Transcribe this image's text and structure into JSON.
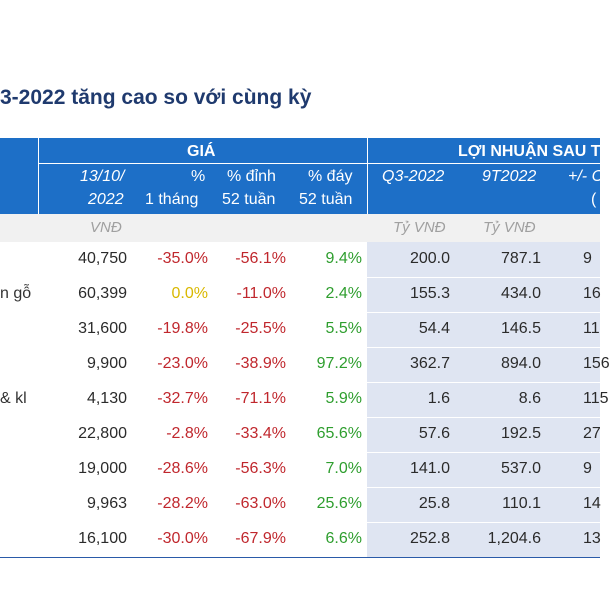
{
  "title": "3-2022 tăng cao so với cùng kỳ",
  "header": {
    "gia": "GIÁ",
    "loi_nhuan": "LỢI NHUẬN SAU T",
    "date_line1": "13/10/",
    "date_line2": "2022",
    "pct_month_1": "%",
    "pct_month_2": "1 tháng",
    "pct_peak_1": "% đỉnh",
    "pct_peak_2": "52 tuần",
    "pct_bottom_1": "% đáy",
    "pct_bottom_2": "52 tuần",
    "q3": "Q3-2022",
    "nine_m": "9T2022",
    "yoy": "+/- C",
    "partial": "("
  },
  "units": {
    "vnd": "VNĐ",
    "ty_q3": "Tỷ VNĐ",
    "ty_9m": "Tỷ VNĐ"
  },
  "rows": [
    {
      "name": "",
      "price": "40,750",
      "m1": "-35.0%",
      "peak": "-56.1%",
      "bottom": "9.4%",
      "q3": "200.0",
      "ytd": "787.1",
      "yoy": "9"
    },
    {
      "name": "n gỗ",
      "price": "60,399",
      "m1": "0.0%",
      "peak": "-11.0%",
      "bottom": "2.4%",
      "q3": "155.3",
      "ytd": "434.0",
      "yoy": "16"
    },
    {
      "name": "",
      "price": "31,600",
      "m1": "-19.8%",
      "peak": "-25.5%",
      "bottom": "5.5%",
      "q3": "54.4",
      "ytd": "146.5",
      "yoy": "11"
    },
    {
      "name": "",
      "price": "9,900",
      "m1": "-23.0%",
      "peak": "-38.9%",
      "bottom": "97.2%",
      "q3": "362.7",
      "ytd": "894.0",
      "yoy": "156"
    },
    {
      "name": "& kl",
      "price": "4,130",
      "m1": "-32.7%",
      "peak": "-71.1%",
      "bottom": "5.9%",
      "q3": "1.6",
      "ytd": "8.6",
      "yoy": "115"
    },
    {
      "name": "",
      "price": "22,800",
      "m1": "-2.8%",
      "peak": "-33.4%",
      "bottom": "65.6%",
      "q3": "57.6",
      "ytd": "192.5",
      "yoy": "27"
    },
    {
      "name": "",
      "price": "19,000",
      "m1": "-28.6%",
      "peak": "-56.3%",
      "bottom": "7.0%",
      "q3": "141.0",
      "ytd": "537.0",
      "yoy": "9"
    },
    {
      "name": "",
      "price": "9,963",
      "m1": "-28.2%",
      "peak": "-63.0%",
      "bottom": "25.6%",
      "q3": "25.8",
      "ytd": "110.1",
      "yoy": "14"
    },
    {
      "name": "",
      "price": "16,100",
      "m1": "-30.0%",
      "peak": "-67.9%",
      "bottom": "6.6%",
      "q3": "252.8",
      "ytd": "1,204.6",
      "yoy": "13"
    }
  ],
  "colors": {
    "header_blue": "#1d6fc7",
    "negative": "#c0272d",
    "zero": "#d9b800",
    "positive": "#2e9e2e",
    "shade": "#dfe5f2"
  }
}
